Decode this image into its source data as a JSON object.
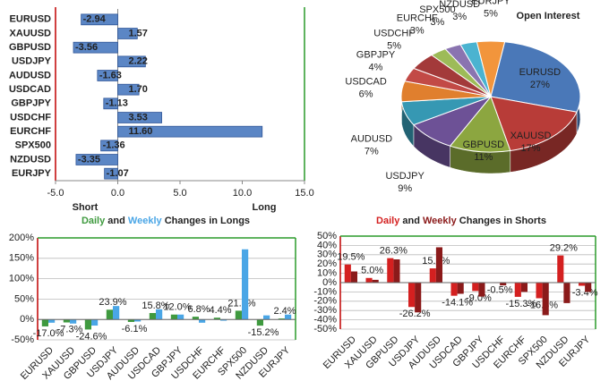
{
  "chart_data": [
    {
      "type": "barh",
      "categories": [
        "EURUSD",
        "XAUUSD",
        "GBPUSD",
        "USDJPY",
        "AUDUSD",
        "USDCAD",
        "GBPJPY",
        "USDCHF",
        "EURCHF",
        "SPX500",
        "NZDUSD",
        "EURJPY"
      ],
      "values": [
        -2.94,
        1.57,
        -3.56,
        2.22,
        -1.63,
        1.7,
        -1.13,
        3.53,
        11.6,
        -1.36,
        -3.35,
        -1.07
      ],
      "value_labels": [
        "-2.94",
        "1.57",
        "-3.56",
        "2.22",
        "-1.63",
        "1.70",
        "-1.13",
        "3.53",
        "11.60",
        "-1.36",
        "-3.35",
        "-1.07"
      ],
      "color": "#5b86c5",
      "xlim": [
        -5,
        15
      ],
      "xticks": [
        {
          "value": -5,
          "label": "-5.0"
        },
        {
          "value": 0,
          "label": "0.0"
        },
        {
          "value": 5,
          "label": "5.0"
        },
        {
          "value": 10,
          "label": "10.0"
        },
        {
          "value": 15,
          "label": "15.0"
        }
      ],
      "annotations": [
        "Short",
        "Long"
      ]
    },
    {
      "type": "pie",
      "title": "Open Interest",
      "categories": [
        "EURUSD",
        "XAUUSD",
        "GBPUSD",
        "USDJPY",
        "AUDUSD",
        "USDCAD",
        "GBPJPY",
        "USDCHF",
        "EURCHF",
        "SPX500",
        "NZDUSD",
        "EURJPY"
      ],
      "values": [
        27,
        17,
        11,
        9,
        7,
        6,
        4,
        5,
        3,
        3,
        3,
        5
      ],
      "value_labels": [
        "27%",
        "17%",
        "11%",
        "9%",
        "7%",
        "6%",
        "4%",
        "5%",
        "3%",
        "3%",
        "3%",
        "5%"
      ],
      "colors": [
        "#4a78b8",
        "#b83c38",
        "#8ca640",
        "#6d5196",
        "#3698b3",
        "#e07f2e",
        "#c24a46",
        "#a33a3a",
        "#9dbb58",
        "#8a74b0",
        "#4bb3d0",
        "#f2953c"
      ]
    },
    {
      "type": "bar",
      "title_parts": [
        "and",
        "Changes in Longs"
      ],
      "categories": [
        "EURUSD",
        "XAUUSD",
        "GBPUSD",
        "USDJPY",
        "AUDUSD",
        "USDCAD",
        "GBPJPY",
        "USDCHF",
        "EURCHF",
        "SPX500",
        "NZDUSD",
        "EURJPY"
      ],
      "series": [
        {
          "name": "Daily",
          "color": "#3f9a3f",
          "values": [
            -17.0,
            -7.3,
            -24.6,
            23.9,
            -6.1,
            15.8,
            12.0,
            6.8,
            4.4,
            21.5,
            -15.2,
            2.4
          ],
          "value_labels": [
            "-17.0%",
            "-7.3%",
            "-24.6%",
            "23.9%",
            "-6.1%",
            "15.8%",
            "12.0%",
            "6.8%",
            "4.4%",
            "21.5%",
            "-15.2%",
            "2.4%"
          ]
        },
        {
          "name": "Weekly",
          "color": "#4aa6e6",
          "values": [
            -8,
            -10,
            -15,
            33,
            -5,
            25,
            12,
            -8,
            -3,
            172,
            10,
            12
          ]
        }
      ],
      "ylim": [
        -50,
        200
      ],
      "yticks": [
        {
          "value": -50,
          "label": "-50%"
        },
        {
          "value": 0,
          "label": "0%"
        },
        {
          "value": 50,
          "label": "50%"
        },
        {
          "value": 100,
          "label": "100%"
        },
        {
          "value": 150,
          "label": "150%"
        },
        {
          "value": 200,
          "label": "200%"
        }
      ]
    },
    {
      "type": "bar",
      "title_parts": [
        "and",
        "Changes in Shorts"
      ],
      "categories": [
        "EURUSD",
        "XAUUSD",
        "GBPUSD",
        "USDJPY",
        "AUDUSD",
        "USDCAD",
        "GBPJPY",
        "USDCHF",
        "EURCHF",
        "SPX500",
        "NZDUSD",
        "EURJPY"
      ],
      "series": [
        {
          "name": "Daily",
          "color": "#d42020",
          "values": [
            19.5,
            5.0,
            26.3,
            -26.2,
            15.3,
            -14.1,
            -9.0,
            -0.5,
            -15.3,
            -16.8,
            29.2,
            -3.4
          ],
          "value_labels": [
            "19.5%",
            "5.0%",
            "26.3%",
            "-26.2%",
            "15.3%",
            "-14.1%",
            "-9.0%",
            "-0.5%",
            "-15.3%",
            "-16.8%",
            "29.2%",
            "-3.4%"
          ]
        },
        {
          "name": "Weekly",
          "color": "#8b1a1a",
          "values": [
            12,
            3,
            25,
            -32,
            38,
            -12,
            -15,
            -3,
            -10,
            -35,
            -22,
            -10
          ]
        }
      ],
      "ylim": [
        -50,
        50
      ],
      "yticks": [
        {
          "value": -50,
          "label": "-50%"
        },
        {
          "value": -40,
          "label": "-40%"
        },
        {
          "value": -30,
          "label": "-30%"
        },
        {
          "value": -20,
          "label": "-20%"
        },
        {
          "value": -10,
          "label": "-10%"
        },
        {
          "value": 0,
          "label": "0%"
        },
        {
          "value": 10,
          "label": "10%"
        },
        {
          "value": 20,
          "label": "20%"
        },
        {
          "value": 30,
          "label": "30%"
        },
        {
          "value": 40,
          "label": "40%"
        },
        {
          "value": 50,
          "label": "50%"
        }
      ]
    }
  ]
}
